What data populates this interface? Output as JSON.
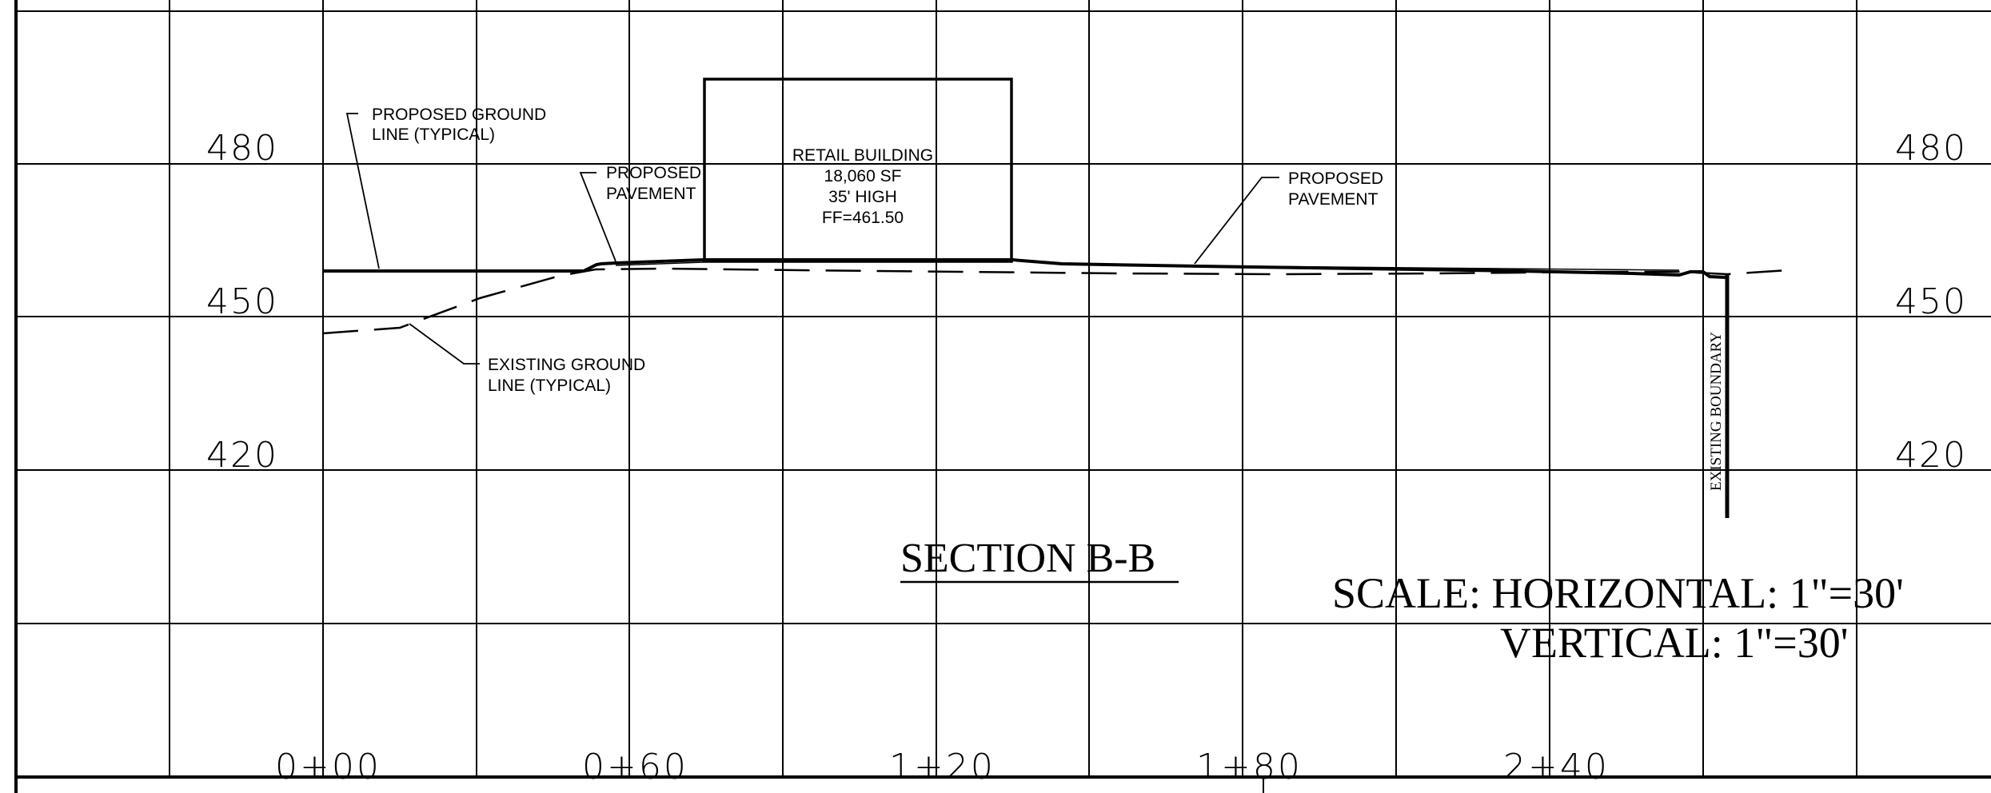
{
  "elevations": {
    "left": [
      "480",
      "450",
      "420"
    ],
    "right": [
      "480",
      "450",
      "420"
    ]
  },
  "stations": [
    "0+00",
    "0+60",
    "1+20",
    "1+80",
    "2+40"
  ],
  "notes": {
    "proposed_ground": [
      "PROPOSED GROUND",
      "LINE (TYPICAL)"
    ],
    "proposed_pavement_left": [
      "PROPOSED",
      "PAVEMENT"
    ],
    "proposed_pavement_right": [
      "PROPOSED",
      "PAVEMENT"
    ],
    "existing_ground": [
      "EXISTING GROUND",
      "LINE (TYPICAL)"
    ],
    "existing_boundary": "EXISTING BOUNDARY"
  },
  "building": {
    "name": "RETAIL BUILDING",
    "area": "18,060 SF",
    "height": "35' HIGH",
    "ff": "FF=461.50"
  },
  "section_title": "SECTION B-B",
  "scale": {
    "horizontal": "SCALE: HORIZONTAL: 1\"=30'",
    "vertical": "VERTICAL: 1\"=30'"
  }
}
